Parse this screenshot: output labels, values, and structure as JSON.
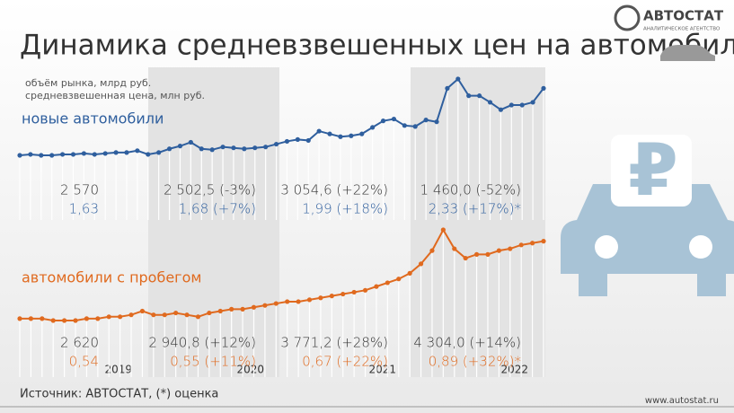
{
  "title": "Динамика средневзвешенных цен на автомобили",
  "legend": [
    "объём рынка, млрд руб.",
    "средневзвешенная цена, млн руб."
  ],
  "logo": {
    "name": "АВТОСТАТ",
    "tagline": "АНАЛИТИЧЕСКОЕ АГЕНТСТВО"
  },
  "source": "Источник: АВТОСТАТ, (*) оценка",
  "website": "www.autostat.ru",
  "years": [
    "2019",
    "2020",
    "2021",
    "2022"
  ],
  "chart_data": [
    {
      "type": "line",
      "title": "новые автомобили",
      "color": "#2f5f9e",
      "values": [
        1.58,
        1.59,
        1.58,
        1.58,
        1.59,
        1.59,
        1.6,
        1.59,
        1.6,
        1.61,
        1.61,
        1.63,
        1.59,
        1.61,
        1.65,
        1.68,
        1.72,
        1.65,
        1.64,
        1.67,
        1.66,
        1.65,
        1.66,
        1.67,
        1.7,
        1.73,
        1.75,
        1.74,
        1.84,
        1.81,
        1.78,
        1.79,
        1.81,
        1.88,
        1.95,
        1.97,
        1.9,
        1.89,
        1.96,
        1.94,
        2.3,
        2.4,
        2.22,
        2.22,
        2.15,
        2.07,
        2.12,
        2.12,
        2.15,
        2.3
      ],
      "annotations": [
        {
          "market": "2 570",
          "price": "1,63"
        },
        {
          "market": "2 502,5 (-3%)",
          "price": "1,68 (+7%)"
        },
        {
          "market": "3 054,6 (+22%)",
          "price": "1,99 (+18%)"
        },
        {
          "market": "1 460,0 (-52%)",
          "price": "2,33 (+17%)*"
        }
      ]
    },
    {
      "type": "line",
      "title": "автомобили с пробегом",
      "color": "#e06a1f",
      "values": [
        0.53,
        0.53,
        0.53,
        0.52,
        0.52,
        0.52,
        0.53,
        0.53,
        0.54,
        0.54,
        0.55,
        0.57,
        0.55,
        0.55,
        0.56,
        0.55,
        0.54,
        0.56,
        0.57,
        0.58,
        0.58,
        0.59,
        0.6,
        0.61,
        0.62,
        0.62,
        0.63,
        0.64,
        0.65,
        0.66,
        0.67,
        0.68,
        0.7,
        0.72,
        0.74,
        0.77,
        0.82,
        0.89,
        1.0,
        0.9,
        0.85,
        0.87,
        0.87,
        0.89,
        0.9,
        0.92,
        0.93,
        0.94
      ],
      "annotations": [
        {
          "market": "2 620",
          "price": "0,54"
        },
        {
          "market": "2 940,8 (+12%)",
          "price": "0,55 (+11%)"
        },
        {
          "market": "3 771,2 (+28%)",
          "price": "0,67 (+22%)"
        },
        {
          "market": "4 304,0 (+14%)",
          "price": "0,89 (+32%)*"
        }
      ]
    }
  ]
}
